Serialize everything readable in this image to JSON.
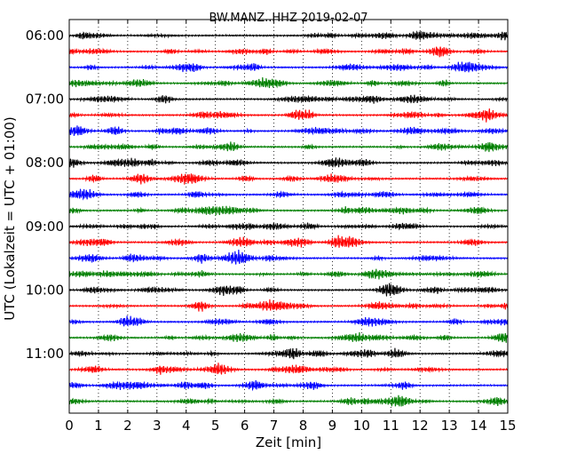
{
  "chart_data": {
    "type": "line",
    "title": "BW.MANZ..HHZ 2019-02-07",
    "xlabel": "Zeit  [min]",
    "ylabel": "UTC (Lokalzeit = UTC + 01:00)",
    "xlim": [
      0,
      15
    ],
    "x_ticks": [
      "0",
      "1",
      "2",
      "3",
      "4",
      "5",
      "6",
      "7",
      "8",
      "9",
      "10",
      "11",
      "12",
      "13",
      "14",
      "15"
    ],
    "y_ticks": [
      "06:00",
      "07:00",
      "08:00",
      "09:00",
      "10:00",
      "11:00"
    ],
    "grid": "vertical-dotted",
    "trace_colors": [
      "#000000",
      "#ff0000",
      "#0000ff",
      "#007f00"
    ],
    "trace_interval_min": 15,
    "trace_count": 24,
    "trace_start": "06:00",
    "trace_end": "11:45"
  }
}
